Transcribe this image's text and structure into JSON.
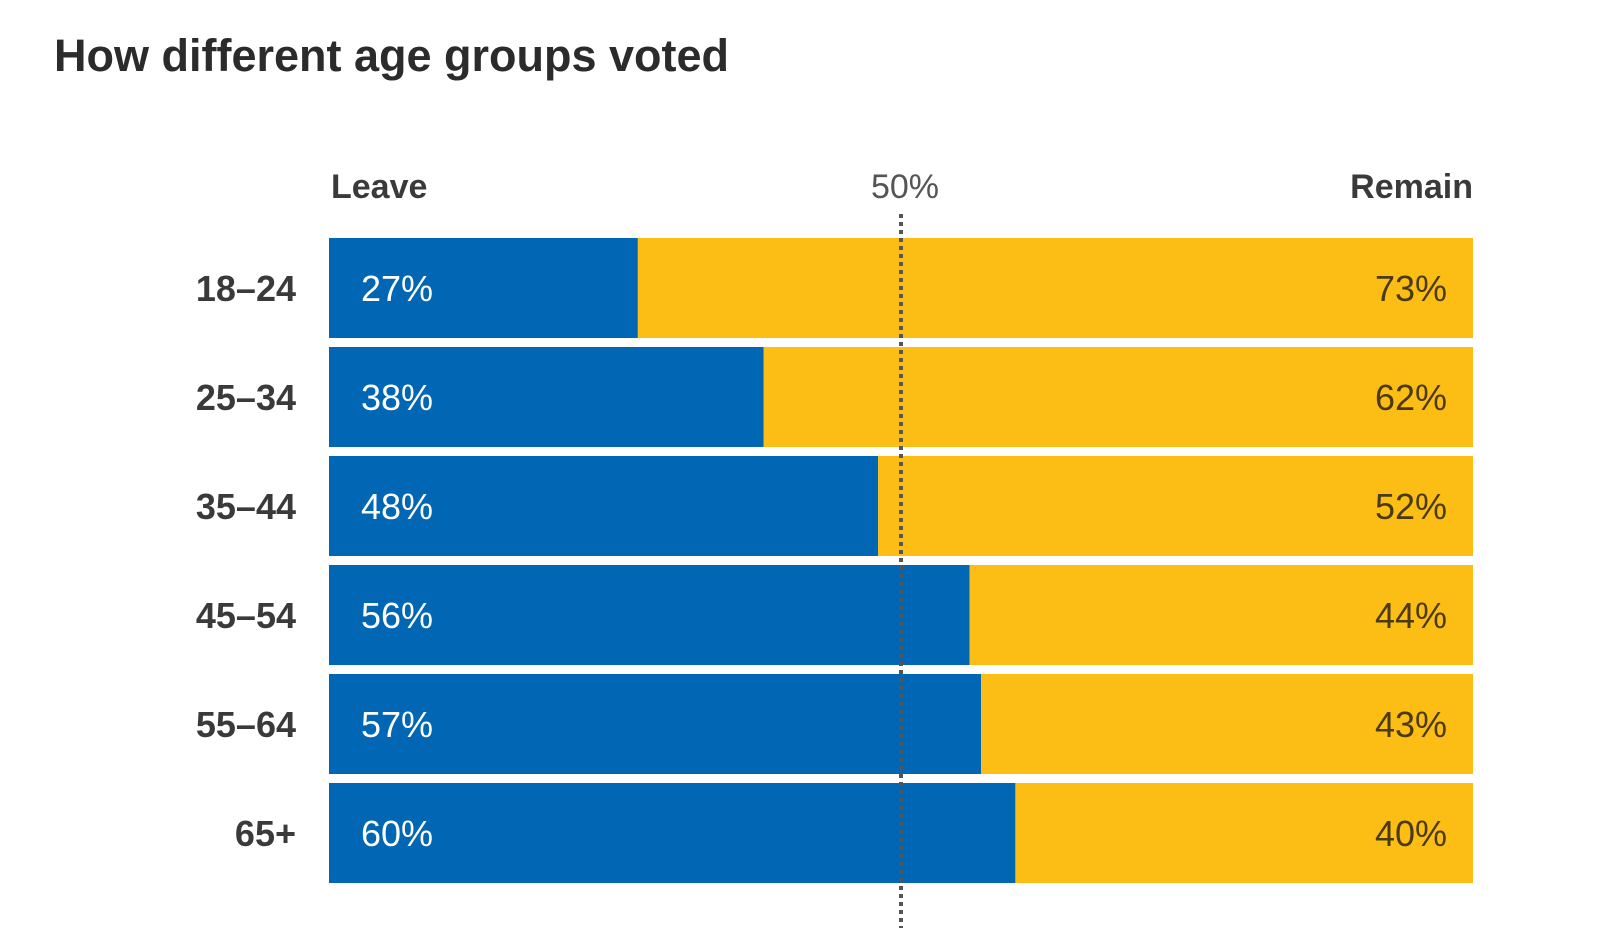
{
  "chart_data": {
    "type": "bar",
    "title": "How different age groups voted",
    "categories": [
      "18–24",
      "25–34",
      "35–44",
      "45–54",
      "55–64",
      "65+"
    ],
    "series": [
      {
        "name": "Leave",
        "values": [
          27,
          38,
          48,
          56,
          57,
          60
        ],
        "labels": [
          "27%",
          "38%",
          "48%",
          "56%",
          "57%",
          "60%"
        ],
        "color": "#0166b3"
      },
      {
        "name": "Remain",
        "values": [
          73,
          62,
          52,
          44,
          43,
          40
        ],
        "labels": [
          "73%",
          "62%",
          "52%",
          "44%",
          "43%",
          "40%"
        ],
        "color": "#fcbd14"
      }
    ],
    "stacked": true,
    "orientation": "horizontal",
    "xlim": [
      0,
      100
    ],
    "reference_line": {
      "value": 50,
      "label": "50%"
    },
    "leave_header": "Leave",
    "remain_header": "Remain",
    "grid": false
  }
}
